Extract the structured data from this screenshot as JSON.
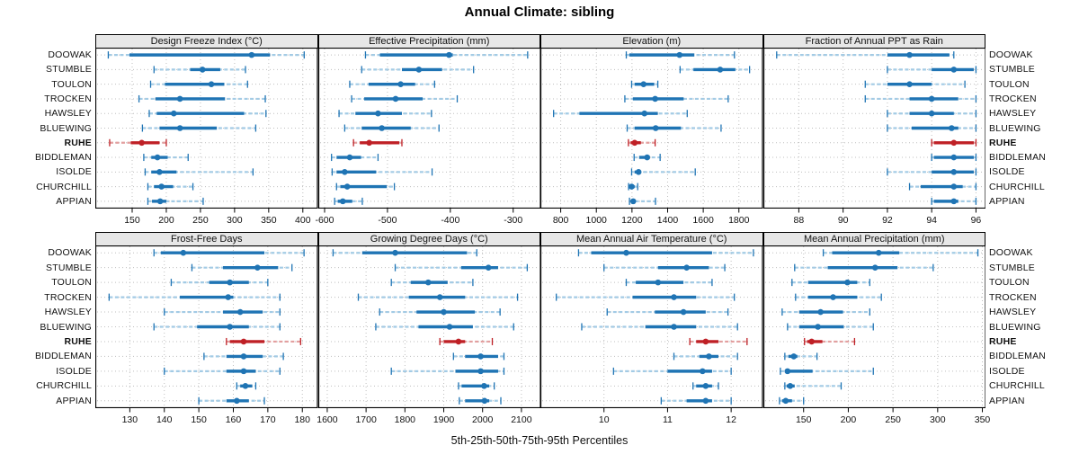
{
  "title": "Annual Climate: sibling",
  "caption": "5th-25th-50th-75th-95th Percentiles",
  "sites": [
    "DOOWAK",
    "STUMBLE",
    "TOULON",
    "TROCKEN",
    "HAWSLEY",
    "BLUEWING",
    "RUHE",
    "BIDDLEMAN",
    "ISOLDE",
    "CHURCHILL",
    "APPIAN"
  ],
  "highlight_site": "RUHE",
  "percentile_labels": [
    "5th",
    "25th",
    "50th",
    "75th",
    "95th"
  ],
  "colors": {
    "series_main": "#1f74b4",
    "series_light": "#a3cbe5",
    "highlight_main": "#bf2026",
    "highlight_light": "#e3a0a0",
    "grid": "#bfbfbf",
    "header_bg": "#e7e7e7",
    "border": "#000000",
    "text": "#111111"
  },
  "chart_data": {
    "type": "scatter",
    "subtype": "percentile-interval-dotplot",
    "layout": {
      "rows": 2,
      "cols": 4,
      "legend": "none",
      "grid": "dotted"
    },
    "percentiles": [
      5,
      25,
      50,
      75,
      95
    ],
    "categories": [
      "DOOWAK",
      "STUMBLE",
      "TOULON",
      "TROCKEN",
      "HAWSLEY",
      "BLUEWING",
      "RUHE",
      "BIDDLEMAN",
      "ISOLDE",
      "CHURCHILL",
      "APPIAN"
    ],
    "panels": [
      {
        "title": "Design Freeze Index (°C)",
        "row": 0,
        "col": 0,
        "xlim": [
          96,
          422
        ],
        "ticks": [
          150,
          200,
          250,
          300,
          350,
          400
        ],
        "values": {
          "DOOWAK": [
            115,
            146,
            325,
            352,
            402
          ],
          "STUMBLE": [
            182,
            235,
            253,
            279,
            316
          ],
          "TOULON": [
            177,
            198,
            266,
            285,
            319
          ],
          "TROCKEN": [
            160,
            184,
            220,
            286,
            345
          ],
          "HAWSLEY": [
            175,
            186,
            211,
            314,
            346
          ],
          "BLUEWING": [
            165,
            190,
            220,
            274,
            331
          ],
          "RUHE": [
            117,
            148,
            164,
            190,
            200
          ],
          "BIDDLEMAN": [
            167,
            178,
            187,
            202,
            232
          ],
          "ISOLDE": [
            169,
            178,
            190,
            215,
            327
          ],
          "CHURCHILL": [
            173,
            182,
            193,
            210,
            239
          ],
          "APPIAN": [
            173,
            179,
            191,
            200,
            254
          ]
        }
      },
      {
        "title": "Effective Precipitation (mm)",
        "row": 0,
        "col": 1,
        "xlim": [
          -610,
          -256
        ],
        "ticks": [
          -600,
          -500,
          -400,
          -300
        ],
        "values": {
          "DOOWAK": [
            -535,
            -512,
            -402,
            -396,
            -277
          ],
          "STUMBLE": [
            -541,
            -477,
            -450,
            -413,
            -363
          ],
          "TOULON": [
            -560,
            -530,
            -479,
            -456,
            -425
          ],
          "TROCKEN": [
            -557,
            -537,
            -487,
            -444,
            -389
          ],
          "HAWSLEY": [
            -577,
            -551,
            -515,
            -477,
            -430
          ],
          "BLUEWING": [
            -568,
            -541,
            -509,
            -463,
            -418
          ],
          "RUHE": [
            -554,
            -544,
            -529,
            -481,
            -477
          ],
          "BIDDLEMAN": [
            -589,
            -581,
            -560,
            -542,
            -515
          ],
          "ISOLDE": [
            -588,
            -581,
            -568,
            -518,
            -429
          ],
          "CHURCHILL": [
            -581,
            -575,
            -564,
            -501,
            -489
          ],
          "APPIAN": [
            -584,
            -579,
            -571,
            -556,
            -540
          ]
        }
      },
      {
        "title": "Elevation (m)",
        "row": 0,
        "col": 2,
        "xlim": [
          686,
          1935
        ],
        "ticks": [
          800,
          1000,
          1200,
          1400,
          1600,
          1800
        ],
        "values": {
          "DOOWAK": [
            1168,
            1185,
            1467,
            1550,
            1775
          ],
          "STUMBLE": [
            1470,
            1545,
            1695,
            1780,
            1860
          ],
          "TOULON": [
            1198,
            1215,
            1265,
            1325,
            1345
          ],
          "TROCKEN": [
            1160,
            1205,
            1330,
            1490,
            1740
          ],
          "HAWSLEY": [
            760,
            905,
            1270,
            1345,
            1510
          ],
          "BLUEWING": [
            1173,
            1215,
            1333,
            1475,
            1700
          ],
          "RUHE": [
            1180,
            1193,
            1215,
            1250,
            1330
          ],
          "BIDDLEMAN": [
            1212,
            1240,
            1285,
            1300,
            1358
          ],
          "ISOLDE": [
            1198,
            1215,
            1237,
            1250,
            1555
          ],
          "CHURCHILL": [
            1181,
            1187,
            1198,
            1215,
            1232
          ],
          "APPIAN": [
            1186,
            1193,
            1207,
            1220,
            1332
          ]
        }
      },
      {
        "title": "Fraction of Annual PPT as Rain",
        "row": 0,
        "col": 3,
        "xlim": [
          86.4,
          96.45
        ],
        "ticks": [
          88,
          90,
          92,
          94,
          96
        ],
        "values": {
          "DOOWAK": [
            87,
            92,
            93,
            94.8,
            95
          ],
          "STUMBLE": [
            92,
            94,
            95,
            95.9,
            96
          ],
          "TOULON": [
            91,
            92,
            93,
            94,
            95.5
          ],
          "TROCKEN": [
            91,
            93,
            94,
            95.2,
            96
          ],
          "HAWSLEY": [
            92,
            93,
            94,
            95,
            96
          ],
          "BLUEWING": [
            92,
            93.1,
            94.9,
            95.2,
            96
          ],
          "RUHE": [
            94,
            94.1,
            95,
            95.9,
            96
          ],
          "BIDDLEMAN": [
            94,
            94.1,
            95,
            95.9,
            96
          ],
          "ISOLDE": [
            92,
            94,
            95,
            95.9,
            96
          ],
          "CHURCHILL": [
            93,
            93.5,
            95,
            95.4,
            96
          ],
          "APPIAN": [
            94,
            94.1,
            95,
            95.2,
            96
          ]
        }
      },
      {
        "title": "Frost-Free Days",
        "row": 1,
        "col": 0,
        "xlim": [
          120,
          184.5
        ],
        "ticks": [
          130,
          140,
          150,
          160,
          170,
          180
        ],
        "values": {
          "DOOWAK": [
            137,
            139,
            145.5,
            169,
            180.5
          ],
          "STUMBLE": [
            148,
            157,
            167,
            173,
            177
          ],
          "TOULON": [
            142,
            153,
            159,
            164.5,
            170
          ],
          "TROCKEN": [
            124,
            144.5,
            158.5,
            160,
            173.5
          ],
          "HAWSLEY": [
            140,
            157,
            162,
            168.5,
            173.5
          ],
          "BLUEWING": [
            137,
            149.5,
            159,
            164.5,
            173.5
          ],
          "RUHE": [
            158,
            159,
            163,
            169,
            179.5
          ],
          "BIDDLEMAN": [
            151.5,
            158,
            163,
            168.5,
            174.5
          ],
          "ISOLDE": [
            140,
            158,
            163,
            166.5,
            173.5
          ],
          "CHURCHILL": [
            161,
            162,
            163.5,
            165.5,
            166.5
          ],
          "APPIAN": [
            150,
            158,
            161,
            164.5,
            169
          ]
        }
      },
      {
        "title": "Growing Degree Days (°C)",
        "row": 1,
        "col": 1,
        "xlim": [
          1577,
          2150
        ],
        "ticks": [
          1600,
          1700,
          1800,
          1900,
          2000,
          2100
        ],
        "values": {
          "DOOWAK": [
            1615,
            1690,
            1775,
            1960,
            1985
          ],
          "STUMBLE": [
            1775,
            1945,
            2015,
            2040,
            2115
          ],
          "TOULON": [
            1765,
            1815,
            1860,
            1910,
            1975
          ],
          "TROCKEN": [
            1680,
            1810,
            1890,
            1955,
            2090
          ],
          "HAWSLEY": [
            1735,
            1830,
            1900,
            1980,
            2045
          ],
          "BLUEWING": [
            1725,
            1835,
            1915,
            1975,
            2080
          ],
          "RUHE": [
            1890,
            1900,
            1938,
            1955,
            2025
          ],
          "BIDDLEMAN": [
            1925,
            1955,
            1995,
            2040,
            2055
          ],
          "ISOLDE": [
            1765,
            1930,
            1995,
            2040,
            2055
          ],
          "CHURCHILL": [
            1938,
            1946,
            2004,
            2017,
            2030
          ],
          "APPIAN": [
            1940,
            1955,
            2005,
            2017,
            2047
          ]
        }
      },
      {
        "title": "Mean Annual Air Temperature (°C)",
        "row": 1,
        "col": 2,
        "xlim": [
          9.0,
          12.5
        ],
        "ticks": [
          10,
          11,
          12
        ],
        "values": {
          "DOOWAK": [
            9.6,
            9.8,
            10.35,
            11.7,
            12.35
          ],
          "STUMBLE": [
            10.0,
            10.85,
            11.3,
            11.65,
            11.9
          ],
          "TOULON": [
            10.35,
            10.5,
            10.85,
            11.25,
            11.7
          ],
          "TROCKEN": [
            9.25,
            10.45,
            11.1,
            11.45,
            12.05
          ],
          "HAWSLEY": [
            10.05,
            10.8,
            11.25,
            11.6,
            11.95
          ],
          "BLUEWING": [
            9.65,
            10.65,
            11.1,
            11.45,
            12.1
          ],
          "RUHE": [
            11.35,
            11.45,
            11.6,
            11.8,
            12.25
          ],
          "BIDDLEMAN": [
            11.1,
            11.5,
            11.65,
            11.8,
            12.1
          ],
          "ISOLDE": [
            10.15,
            11.0,
            11.55,
            11.7,
            12.0
          ],
          "CHURCHILL": [
            11.4,
            11.45,
            11.6,
            11.7,
            11.8
          ],
          "APPIAN": [
            10.9,
            11.3,
            11.6,
            11.7,
            12.0
          ]
        }
      },
      {
        "title": "Mean Annual Precipitation (mm)",
        "row": 1,
        "col": 3,
        "xlim": [
          105,
          354
        ],
        "ticks": [
          150,
          200,
          250,
          300,
          350
        ],
        "values": {
          "DOOWAK": [
            172,
            182,
            234,
            257,
            345
          ],
          "STUMBLE": [
            140,
            177,
            230,
            255,
            295
          ],
          "TOULON": [
            137,
            155,
            199,
            210,
            224
          ],
          "TROCKEN": [
            141,
            155,
            183,
            210,
            237
          ],
          "HAWSLEY": [
            126,
            145,
            169,
            194,
            224
          ],
          "BLUEWING": [
            132,
            145,
            166,
            195,
            228
          ],
          "RUHE": [
            151,
            154,
            159,
            171,
            207
          ],
          "BIDDLEMAN": [
            129,
            133,
            139,
            143,
            165
          ],
          "ISOLDE": [
            124,
            129,
            132,
            160,
            228
          ],
          "CHURCHILL": [
            129,
            131,
            135,
            140,
            192
          ],
          "APPIAN": [
            123,
            126,
            130,
            137,
            150
          ]
        }
      }
    ]
  }
}
